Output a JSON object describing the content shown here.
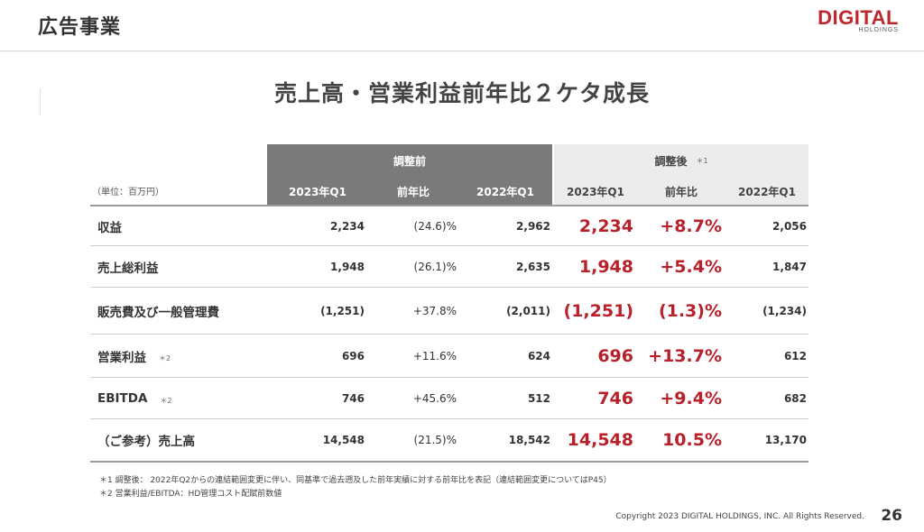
{
  "header": {
    "section_title": "広告事業",
    "logo_main": "DIGITAL",
    "logo_sub": "HOLDINGS"
  },
  "headline": "売上高・営業利益前年比２ケタ成長",
  "table": {
    "unit_label": "（単位：百万円）",
    "group_before": "調整前",
    "group_after": "調整後",
    "group_after_note": "＊1",
    "columns": [
      "2023年Q1",
      "前年比",
      "2022年Q1",
      "2023年Q1",
      "前年比",
      "2022年Q1"
    ],
    "rows": [
      {
        "label": "収益",
        "note": "",
        "b_2023": "2,234",
        "b_yoy": "(24.6)%",
        "b_2022": "2,962",
        "a_2023": "2,234",
        "a_yoy": "+8.7%",
        "a_2022": "2,056"
      },
      {
        "label": "売上総利益",
        "note": "",
        "b_2023": "1,948",
        "b_yoy": "(26.1)%",
        "b_2022": "2,635",
        "a_2023": "1,948",
        "a_yoy": "+5.4%",
        "a_2022": "1,847"
      },
      {
        "label": "販売費及び一般管理費",
        "note": "",
        "b_2023": "(1,251)",
        "b_yoy": "+37.8%",
        "b_2022": "(2,011)",
        "a_2023": "(1,251)",
        "a_yoy": "(1.3)%",
        "a_2022": "(1,234)"
      },
      {
        "label": "営業利益",
        "note": "＊2",
        "b_2023": "696",
        "b_yoy": "+11.6%",
        "b_2022": "624",
        "a_2023": "696",
        "a_yoy": "+13.7%",
        "a_2022": "612"
      },
      {
        "label": "EBITDA",
        "note": "＊2",
        "b_2023": "746",
        "b_yoy": "+45.6%",
        "b_2022": "512",
        "a_2023": "746",
        "a_yoy": "+9.4%",
        "a_2022": "682"
      },
      {
        "label": "（ご参考）売上高",
        "note": "",
        "b_2023": "14,548",
        "b_yoy": "(21.5)%",
        "b_2022": "18,542",
        "a_2023": "14,548",
        "a_yoy": "10.5%",
        "a_2022": "13,170"
      }
    ]
  },
  "footnotes": [
    "＊1 調整後： 2022年Q2からの連結範囲変更に伴い、同基準で過去遡及した前年実績に対する前年比を表記（連結範囲変更についてはP45）",
    "＊2 営業利益/EBITDA：HD管理コスト配賦前数値"
  ],
  "footer": {
    "copyright": "Copyright 2023 DIGITAL HOLDINGS, INC. All Rights Reserved.",
    "page_number": "26"
  },
  "colors": {
    "accent_red": "#b8202a",
    "header_gray": "#7a7a7a",
    "header_light": "#ececec"
  }
}
